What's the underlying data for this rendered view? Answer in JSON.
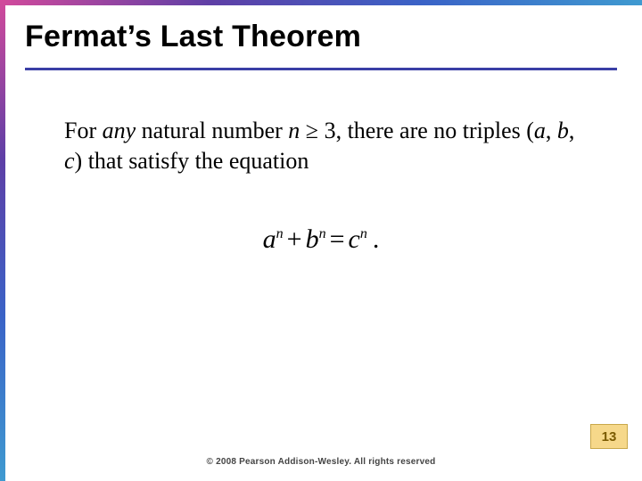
{
  "slide": {
    "background_color": "#ffffff",
    "gradient_colors": [
      "#d24a9b",
      "#5e3fa6",
      "#3a63c7",
      "#3f9ad0"
    ],
    "title": "Fermat’s Last Theorem",
    "title_color": "#000000",
    "title_fontsize": 34,
    "underline_color": "#3a3fa6"
  },
  "body": {
    "text_prefix": "For ",
    "any": "any",
    "text_mid1": " natural number ",
    "n_var": "n",
    "ge_symbol": " ≥ ",
    "three": "3",
    "text_mid2": ", there are no triples (",
    "a_var": "a",
    "comma1": ", ",
    "b_var": "b",
    "comma2": ", ",
    "c_var": "c",
    "text_suffix": ") that satisfy the equation",
    "fontsize": 26
  },
  "equation": {
    "a": "a",
    "b": "b",
    "c": "c",
    "n": "n",
    "plus": "+",
    "equals": "=",
    "period": ".",
    "fontsize": 30
  },
  "footer": {
    "copyright": "© 2008 Pearson Addison-Wesley. All rights reserved",
    "copyright_fontsize": 10
  },
  "page_badge": {
    "number": "13",
    "bg_color": "#f6d88a",
    "border_color": "#c9a84a",
    "text_color": "#7a5a00"
  }
}
